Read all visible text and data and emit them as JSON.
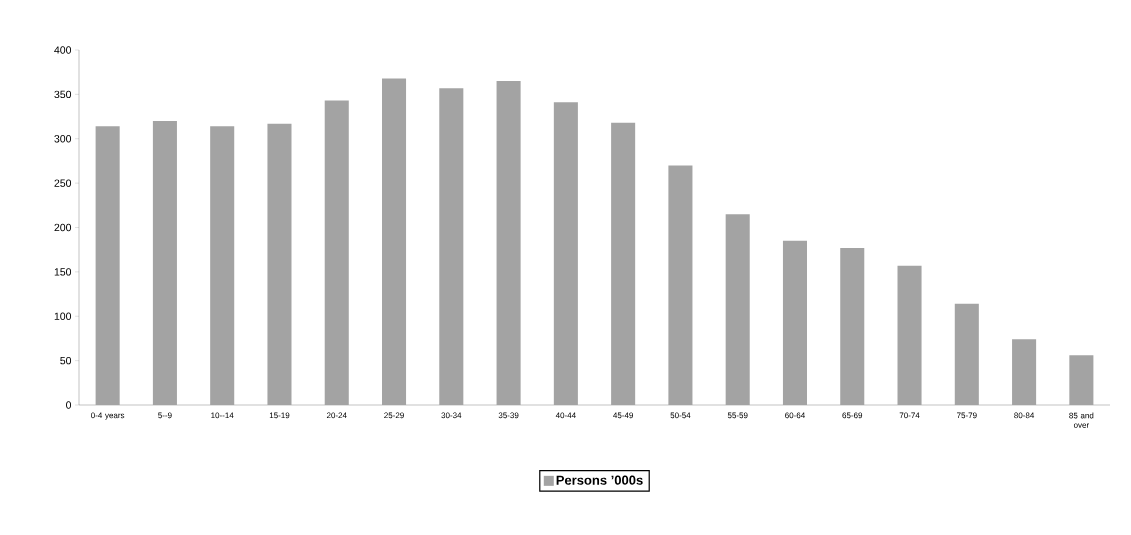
{
  "chart_data": {
    "type": "bar",
    "categories": [
      "0-4 years",
      "5--9",
      "10--14",
      "15-19",
      "20-24",
      "25-29",
      "30-34",
      "35-39",
      "40-44",
      "45-49",
      "50-54",
      "55-59",
      "60-64",
      "65-69",
      "70-74",
      "75-79",
      "80-84",
      "85 and over"
    ],
    "series": [
      {
        "name": "Persons ’000s",
        "color": "#a3a3a3",
        "values": [
          314,
          320,
          314,
          317,
          343,
          368,
          357,
          365,
          341,
          318,
          270,
          215,
          185,
          177,
          157,
          114,
          74,
          56
        ]
      }
    ],
    "ylim": [
      0,
      400
    ],
    "yticks": [
      0,
      50,
      100,
      150,
      200,
      250,
      300,
      350,
      400
    ],
    "legend": "bottom",
    "grid": false
  }
}
